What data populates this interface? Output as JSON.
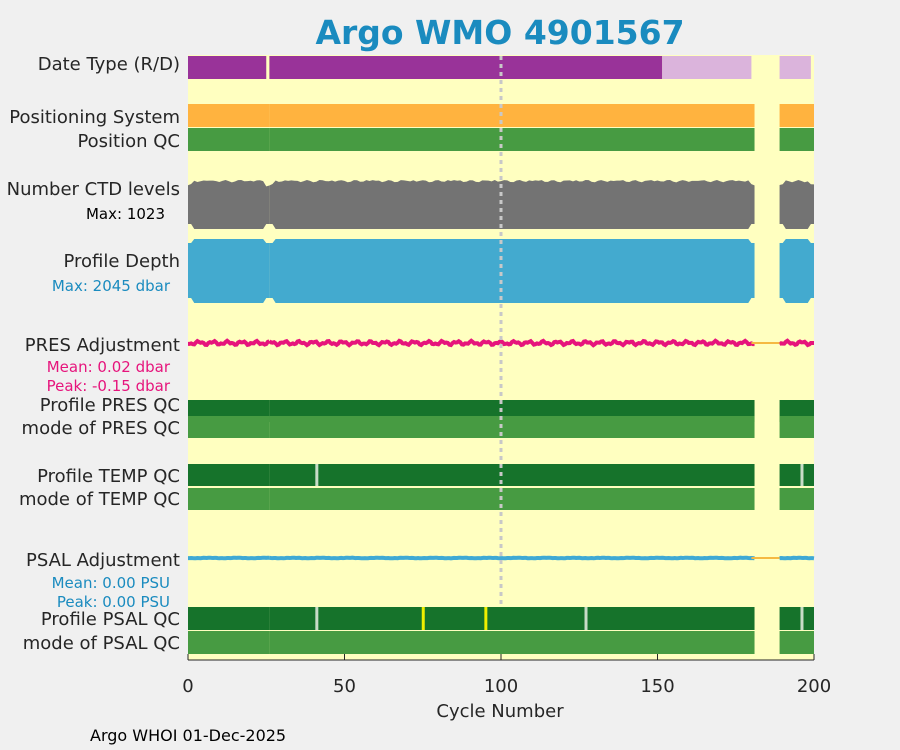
{
  "chart_data": {
    "type": "status-timeline",
    "title": "Argo WMO 4901567",
    "xlabel": "Cycle Number",
    "xlim": [
      0,
      200
    ],
    "xticks": [
      "0",
      "50",
      "100",
      "150",
      "200"
    ],
    "last_cycle": 200,
    "footer": "Argo WHOI 01-Dec-2025",
    "colors": {
      "plot_bg": "#ffffc0",
      "title": "#1a8bbf",
      "realtime": "#993399",
      "delayed": "#dbb4dc",
      "positioning": "#ffb33f",
      "qc_good": "#479b42",
      "qc_profile": "#16732b",
      "ctd": "#737373",
      "depth": "#43aacf",
      "pres_line": "#e6147c",
      "psal_line": "#3fa9d4",
      "missing_line": "#f5b942",
      "yellow_flag": "#f0f000",
      "cycle100": "#c8c8c8"
    },
    "gap_cycles": [
      [
        26,
        27
      ],
      [
        181,
        190
      ],
      [
        200,
        201
      ]
    ],
    "rows": {
      "date_type": {
        "label": "Date Type (R/D)",
        "segments": [
          {
            "from": 0,
            "to": 151.5,
            "mode": "R"
          },
          {
            "from": 151.5,
            "to": 200,
            "mode": "D"
          }
        ]
      },
      "positioning": {
        "label": "Positioning System"
      },
      "position_qc": {
        "label": "Position QC"
      },
      "ctd_levels": {
        "label": "Number CTD levels",
        "max_text": "Max: 1023"
      },
      "profile_depth": {
        "label": "Profile Depth",
        "max_text": "Max: 2045 dbar"
      },
      "pres_adjustment": {
        "label": "PRES Adjustment",
        "mean_text": "Mean: 0.02 dbar",
        "peak_text": "Peak: -0.15 dbar"
      },
      "profile_pres_qc": {
        "label": "Profile PRES QC"
      },
      "mode_pres_qc": {
        "label": "mode of PRES QC"
      },
      "profile_temp_qc": {
        "label": "Profile TEMP QC",
        "flags": [
          {
            "cycle": 41,
            "color": "#c8dcc8"
          },
          {
            "cycle": 196,
            "color": "#c8dcc8"
          }
        ]
      },
      "mode_temp_qc": {
        "label": "mode of TEMP QC"
      },
      "psal_adjustment": {
        "label": "PSAL Adjustment",
        "mean_text": "Mean: 0.00 PSU",
        "peak_text": "Peak: 0.00 PSU"
      },
      "profile_psal_qc": {
        "label": "Profile PSAL QC",
        "flags": [
          {
            "cycle": 41,
            "color": "#c8dcc8"
          },
          {
            "cycle": 75,
            "color": "#f0f000"
          },
          {
            "cycle": 95,
            "color": "#f0f000"
          },
          {
            "cycle": 127,
            "color": "#c8dcc8"
          },
          {
            "cycle": 196,
            "color": "#c8dcc8"
          }
        ]
      },
      "mode_psal_qc": {
        "label": "mode of PSAL QC"
      }
    }
  }
}
